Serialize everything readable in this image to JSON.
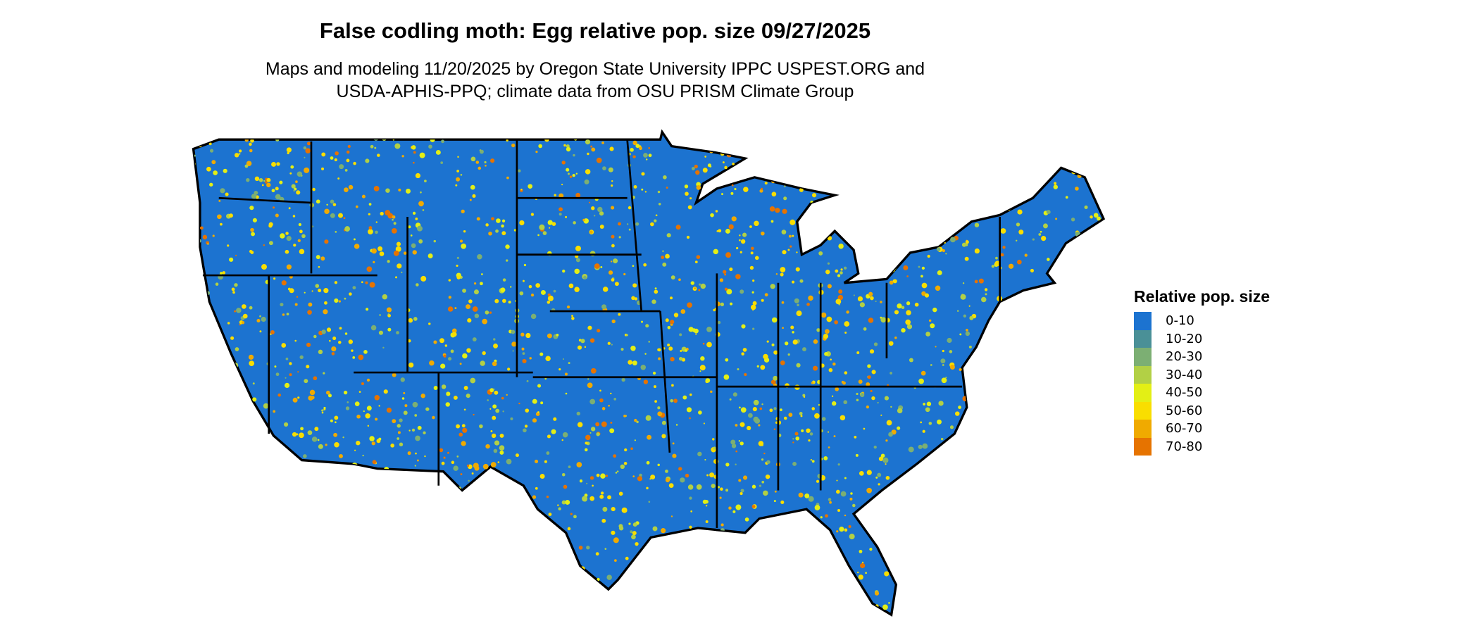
{
  "title": "False codling moth: Egg relative pop. size 09/27/2025",
  "subtitle": [
    "Maps and modeling 11/20/2025 by Oregon State University IPPC USPEST.ORG and",
    "USDA-APHIS-PPQ; climate data from OSU PRISM Climate Group"
  ],
  "legend": {
    "title": "Relative pop. size",
    "items": [
      {
        "label": "0-10",
        "color": "#1c73d0"
      },
      {
        "label": "10-20",
        "color": "#4a9097"
      },
      {
        "label": "20-30",
        "color": "#7caf73"
      },
      {
        "label": "30-40",
        "color": "#b2d045"
      },
      {
        "label": "40-50",
        "color": "#e3ef15"
      },
      {
        "label": "50-60",
        "color": "#f9de00"
      },
      {
        "label": "60-70",
        "color": "#f0aa00"
      },
      {
        "label": "70-80",
        "color": "#e67300"
      }
    ]
  }
}
